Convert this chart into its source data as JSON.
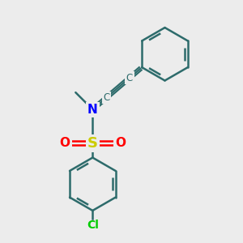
{
  "bg_color": "#ececec",
  "bond_color": "#2d6b6b",
  "N_color": "#0000ff",
  "S_color": "#cccc00",
  "O_color": "#ff0000",
  "Cl_color": "#00cc00",
  "figsize": [
    3.0,
    3.0
  ],
  "dpi": 100,
  "xlim": [
    0,
    10
  ],
  "ylim": [
    0,
    10
  ]
}
